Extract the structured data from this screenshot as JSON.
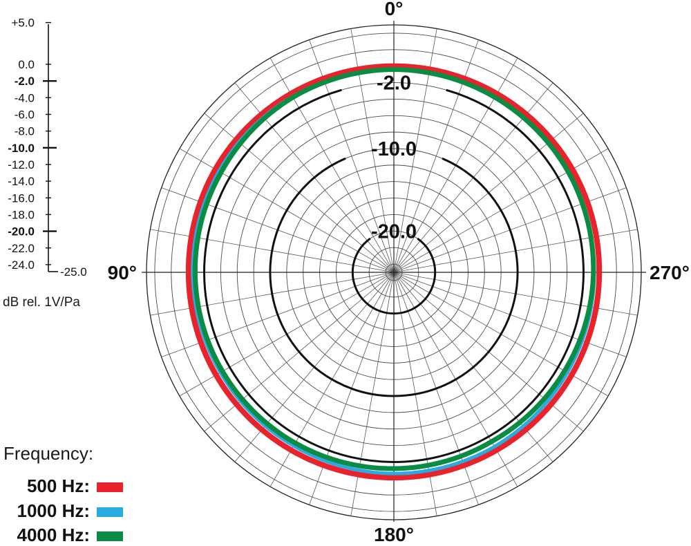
{
  "chart_data": {
    "type": "polar",
    "unit_label": "dB rel. 1V/Pa",
    "scale_ticks": [
      "+5.0",
      "0.0",
      "-2.0",
      "-4.0",
      "-6.0",
      "-8.0",
      "-10.0",
      "-12.0",
      "-14.0",
      "-16.0",
      "-18.0",
      "-20.0",
      "-22.0",
      "-24.0",
      "-25.0"
    ],
    "scale_bold_ticks": [
      "-2.0",
      "-10.0",
      "-20.0"
    ],
    "ring_labels": [
      "-2.0",
      "-10.0",
      "-20.0"
    ],
    "angle_labels": [
      "0°",
      "90°",
      "180°",
      "270°"
    ],
    "rlim": [
      -25,
      5
    ],
    "reference_rings_db": [
      -2,
      -10,
      -20
    ],
    "angles_deg": [
      0,
      30,
      60,
      90,
      120,
      150,
      180,
      210,
      240,
      270,
      300,
      330,
      360
    ],
    "legend_title": "Frequency:",
    "series": [
      {
        "name": "500 Hz:",
        "color": "#e8232b",
        "values": [
          0.0,
          0.0,
          0.0,
          -0.1,
          -0.1,
          -0.1,
          -0.1,
          -0.1,
          -0.1,
          -0.1,
          0.0,
          0.0,
          0.0
        ]
      },
      {
        "name": "1000 Hz:",
        "color": "#29abe2",
        "values": [
          -0.4,
          -0.4,
          -0.5,
          -0.6,
          -0.7,
          -0.7,
          -0.6,
          -0.6,
          -0.7,
          -0.7,
          -0.6,
          -0.5,
          -0.4
        ]
      },
      {
        "name": "4000 Hz:",
        "color": "#0a8c45",
        "values": [
          -0.4,
          -0.5,
          -0.8,
          -0.9,
          -1.0,
          -1.1,
          -1.2,
          -1.3,
          -1.1,
          -0.8,
          -0.6,
          -0.5,
          -0.4
        ]
      }
    ]
  }
}
